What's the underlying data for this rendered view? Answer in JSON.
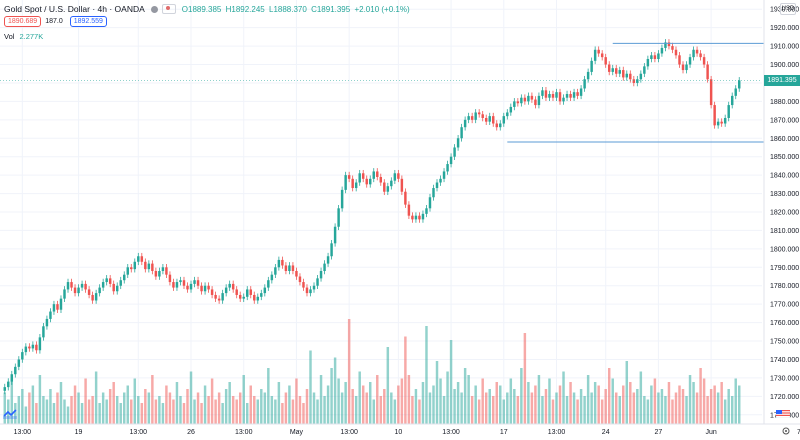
{
  "header": {
    "title": "Gold Spot / U.S. Dollar · 4h · OANDA",
    "ohlc": [
      "O1889.385",
      "H1892.245",
      "L1888.370",
      "C1891.395",
      "+2.010 (+0.1%)"
    ],
    "bid": "1890.689",
    "spread": "187.0",
    "ask": "1892.559",
    "volume_label": "Vol",
    "volume_value": "2.277K",
    "currency": "USD"
  },
  "colors": {
    "up": "#26a69a",
    "down": "#ef5350",
    "line": "#5b9bd5",
    "grid": "#f0f3fa"
  },
  "chart_data": {
    "type": "candlestick",
    "title": "Gold Spot / U.S. Dollar · 4h · OANDA",
    "ylim": [
      1705,
      1935
    ],
    "y_ticks": [
      1930,
      1920,
      1910,
      1900,
      1890,
      1880,
      1870,
      1860,
      1850,
      1840,
      1830,
      1820,
      1810,
      1800,
      1790,
      1780,
      1770,
      1760,
      1750,
      1740,
      1730,
      1720,
      1710
    ],
    "y_tick_labels": [
      "1930.000",
      "1920.000",
      "1910.000",
      "1900.000",
      "1890.000",
      "1880.000",
      "1870.000",
      "1860.000",
      "1850.000",
      "1840.000",
      "1830.000",
      "1820.000",
      "1810.000",
      "1800.000",
      "1790.000",
      "1780.000",
      "1770.000",
      "1760.000",
      "1750.000",
      "1740.000",
      "1730.000",
      "1720.000",
      "1710.000"
    ],
    "x_ticks": [
      {
        "i": 5,
        "label": "13:00"
      },
      {
        "i": 21,
        "label": "19"
      },
      {
        "i": 38,
        "label": "13:00"
      },
      {
        "i": 53,
        "label": "26"
      },
      {
        "i": 68,
        "label": "13:00"
      },
      {
        "i": 83,
        "label": "May"
      },
      {
        "i": 98,
        "label": "13:00"
      },
      {
        "i": 112,
        "label": "10"
      },
      {
        "i": 127,
        "label": "13:00"
      },
      {
        "i": 142,
        "label": "17"
      },
      {
        "i": 157,
        "label": "13:00"
      },
      {
        "i": 171,
        "label": "24"
      },
      {
        "i": 186,
        "label": "27"
      },
      {
        "i": 201,
        "label": "Jun"
      },
      {
        "i": 226,
        "label": "7"
      }
    ],
    "last_price": 1891.395,
    "last_price_label": "1891.395",
    "closes": [
      1725,
      1728,
      1732,
      1736,
      1740,
      1744,
      1747,
      1746,
      1748,
      1745,
      1752,
      1758,
      1762,
      1766,
      1770,
      1767,
      1773,
      1778,
      1782,
      1779,
      1776,
      1779,
      1781,
      1778,
      1775,
      1772,
      1776,
      1779,
      1782,
      1784,
      1781,
      1777,
      1780,
      1783,
      1786,
      1790,
      1789,
      1793,
      1796,
      1793,
      1789,
      1792,
      1788,
      1785,
      1788,
      1790,
      1786,
      1782,
      1779,
      1782,
      1783,
      1780,
      1778,
      1781,
      1783,
      1780,
      1777,
      1780,
      1778,
      1775,
      1773,
      1772,
      1776,
      1779,
      1781,
      1778,
      1775,
      1773,
      1774,
      1778,
      1775,
      1772,
      1774,
      1776,
      1779,
      1783,
      1786,
      1790,
      1794,
      1791,
      1788,
      1791,
      1788,
      1785,
      1782,
      1779,
      1776,
      1778,
      1780,
      1784,
      1788,
      1792,
      1796,
      1803,
      1812,
      1822,
      1832,
      1840,
      1838,
      1833,
      1836,
      1841,
      1838,
      1835,
      1838,
      1842,
      1839,
      1836,
      1831,
      1834,
      1837,
      1841,
      1838,
      1831,
      1824,
      1818,
      1816,
      1818,
      1816,
      1819,
      1822,
      1828,
      1833,
      1836,
      1838,
      1842,
      1846,
      1850,
      1855,
      1860,
      1866,
      1870,
      1872,
      1870,
      1874,
      1873,
      1871,
      1869,
      1872,
      1868,
      1866,
      1868,
      1872,
      1874,
      1877,
      1880,
      1879,
      1882,
      1880,
      1883,
      1881,
      1878,
      1883,
      1886,
      1882,
      1884,
      1882,
      1885,
      1880,
      1882,
      1884,
      1882,
      1885,
      1883,
      1887,
      1892,
      1896,
      1902,
      1908,
      1906,
      1904,
      1900,
      1896,
      1898,
      1895,
      1897,
      1893,
      1895,
      1892,
      1890,
      1892,
      1895,
      1899,
      1903,
      1905,
      1903,
      1906,
      1909,
      1912,
      1910,
      1908,
      1905,
      1900,
      1897,
      1900,
      1904,
      1908,
      1906,
      1904,
      1900,
      1892,
      1878,
      1867,
      1869,
      1868,
      1871,
      1878,
      1883,
      1887,
      1891.395
    ],
    "volumes": [
      0.9,
      0.7,
      1.3,
      0.6,
      0.8,
      1.0,
      0.5,
      0.9,
      1.1,
      0.6,
      1.4,
      0.8,
      0.7,
      1.0,
      0.6,
      0.9,
      1.2,
      0.7,
      0.5,
      0.8,
      1.1,
      0.9,
      0.6,
      1.3,
      0.7,
      0.8,
      1.5,
      0.6,
      0.9,
      0.7,
      1.0,
      1.2,
      0.8,
      0.6,
      0.9,
      1.1,
      0.7,
      1.3,
      0.8,
      0.6,
      1.0,
      0.9,
      1.4,
      0.7,
      0.8,
      0.6,
      1.1,
      0.9,
      0.7,
      1.2,
      0.8,
      0.6,
      1.0,
      1.5,
      0.7,
      0.9,
      0.6,
      1.1,
      0.8,
      1.3,
      0.7,
      0.9,
      0.6,
      1.0,
      1.2,
      0.8,
      0.7,
      0.9,
      1.4,
      0.6,
      1.1,
      0.8,
      0.7,
      1.0,
      0.9,
      1.6,
      0.8,
      0.7,
      1.2,
      0.6,
      0.9,
      1.1,
      0.7,
      1.3,
      0.8,
      0.6,
      1.0,
      2.1,
      0.9,
      0.7,
      1.4,
      0.8,
      1.1,
      1.6,
      1.9,
      1.3,
      0.9,
      1.2,
      3.0,
      1.0,
      0.8,
      1.5,
      1.1,
      0.9,
      1.2,
      0.7,
      1.4,
      0.8,
      1.0,
      2.2,
      0.9,
      0.7,
      1.1,
      1.3,
      2.5,
      1.4,
      0.8,
      1.0,
      0.7,
      1.2,
      2.8,
      0.9,
      1.1,
      1.8,
      1.3,
      0.8,
      1.5,
      2.4,
      1.0,
      1.2,
      0.9,
      1.6,
      1.4,
      0.8,
      1.1,
      0.7,
      1.3,
      0.9,
      1.0,
      0.8,
      1.2,
      1.1,
      0.7,
      0.9,
      1.3,
      1.0,
      0.8,
      1.6,
      2.6,
      1.2,
      0.9,
      1.1,
      1.4,
      0.8,
      1.0,
      1.3,
      0.7,
      0.9,
      1.1,
      1.5,
      0.8,
      1.2,
      0.9,
      0.7,
      1.0,
      0.8,
      1.4,
      0.9,
      1.2,
      1.1,
      0.7,
      1.0,
      1.6,
      1.3,
      0.9,
      0.8,
      1.1,
      1.8,
      1.2,
      0.9,
      1.0,
      1.5,
      0.8,
      0.7,
      1.1,
      1.3,
      0.9,
      1.0,
      0.8,
      1.2,
      0.7,
      0.9,
      1.1,
      1.0,
      0.8,
      1.4,
      1.2,
      0.9,
      1.6,
      1.3,
      0.8,
      1.0,
      1.1,
      0.9,
      1.2,
      0.7,
      1.0,
      0.8,
      1.3,
      1.1,
      0.9,
      1.8,
      2.0,
      1.4,
      1.2,
      1.0,
      1.6,
      1.3,
      1.1,
      1.4
    ],
    "trend_lines": [
      {
        "from_i": 173,
        "to_i": 221,
        "y": 1911.5
      },
      {
        "from_i": 143,
        "to_i": 221,
        "y": 1858
      }
    ]
  }
}
